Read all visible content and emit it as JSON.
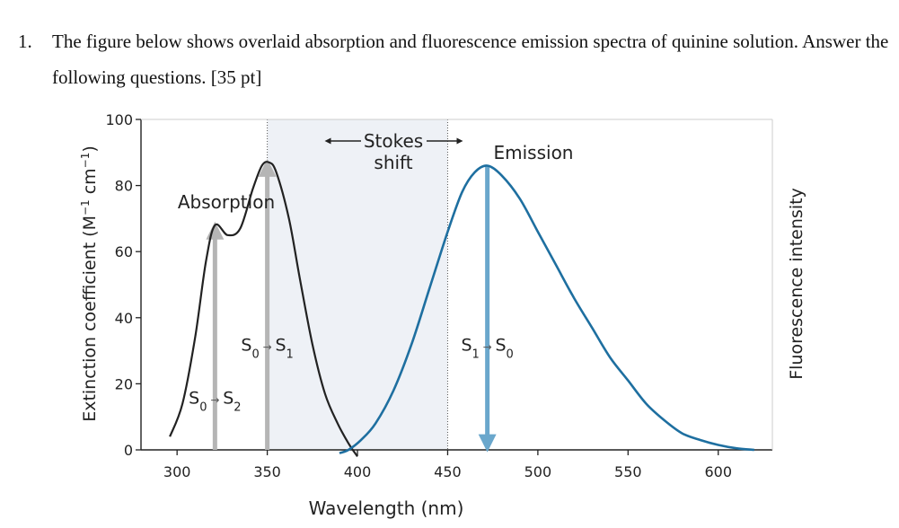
{
  "question": {
    "number": "1.",
    "text": "The figure below shows overlaid absorption and fluorescence emission spectra of quinine solution. Answer the following questions. [35 pt]"
  },
  "chart_data": {
    "type": "line",
    "xlabel": "Wavelength (nm)",
    "ylabel_left_main": "Extinction coefficient (M",
    "ylabel_left_sup1": "−1",
    "ylabel_left_mid": " cm",
    "ylabel_left_sup2": "−1",
    "ylabel_left_end": ")",
    "ylabel_right": "Fluorescence intensity",
    "xlim": [
      280,
      630
    ],
    "ylim": [
      0,
      100
    ],
    "x_ticks": [
      300,
      350,
      400,
      450,
      500,
      550,
      600
    ],
    "y_ticks": [
      0,
      20,
      40,
      60,
      80,
      100
    ],
    "series": [
      {
        "name": "Absorption",
        "color": "#222222",
        "x": [
          296,
          303,
          310,
          316,
          321,
          328,
          335,
          342,
          347,
          351,
          355,
          362,
          368,
          375,
          382,
          389,
          395,
          400
        ],
        "y": [
          4,
          14,
          34,
          57,
          68,
          65,
          67,
          79,
          86,
          87,
          84,
          70,
          52,
          32,
          17,
          8,
          2,
          -2
        ]
      },
      {
        "name": "Emission",
        "color": "#1e6fa0",
        "x": [
          390,
          395,
          402,
          410,
          420,
          430,
          440,
          450,
          458,
          465,
          472,
          480,
          490,
          500,
          510,
          520,
          530,
          540,
          550,
          560,
          570,
          580,
          590,
          600,
          610,
          620
        ],
        "y": [
          -1,
          0,
          3,
          8,
          18,
          32,
          49,
          66,
          78,
          84,
          86,
          83,
          76,
          66,
          56,
          46,
          37,
          28,
          21,
          14,
          9,
          5,
          3,
          1.5,
          0.5,
          0
        ]
      }
    ],
    "annotations": {
      "absorption_label": "Absorption",
      "emission_label": "Emission",
      "stokes_line1": "Stokes",
      "stokes_line2": "shift",
      "stokes_region": [
        350,
        440
      ],
      "transition_s0_s2": {
        "from": "S",
        "from_sub": "0",
        "to": "S",
        "to_sub": "2",
        "x": 321,
        "y_top": 68
      },
      "transition_s0_s1": {
        "from": "S",
        "from_sub": "0",
        "to": "S",
        "to_sub": "1",
        "x": 350,
        "y_top": 87
      },
      "transition_s1_s0": {
        "from": "S",
        "from_sub": "1",
        "to": "S",
        "to_sub": "0",
        "x": 472,
        "y_top": 86
      }
    }
  },
  "colors": {
    "absorption": "#222222",
    "emission": "#1e6fa0",
    "absorption_arrow": "#b5b5b5",
    "emission_arrow": "#6aa7cc",
    "stokes_band": "#eef1f6"
  }
}
